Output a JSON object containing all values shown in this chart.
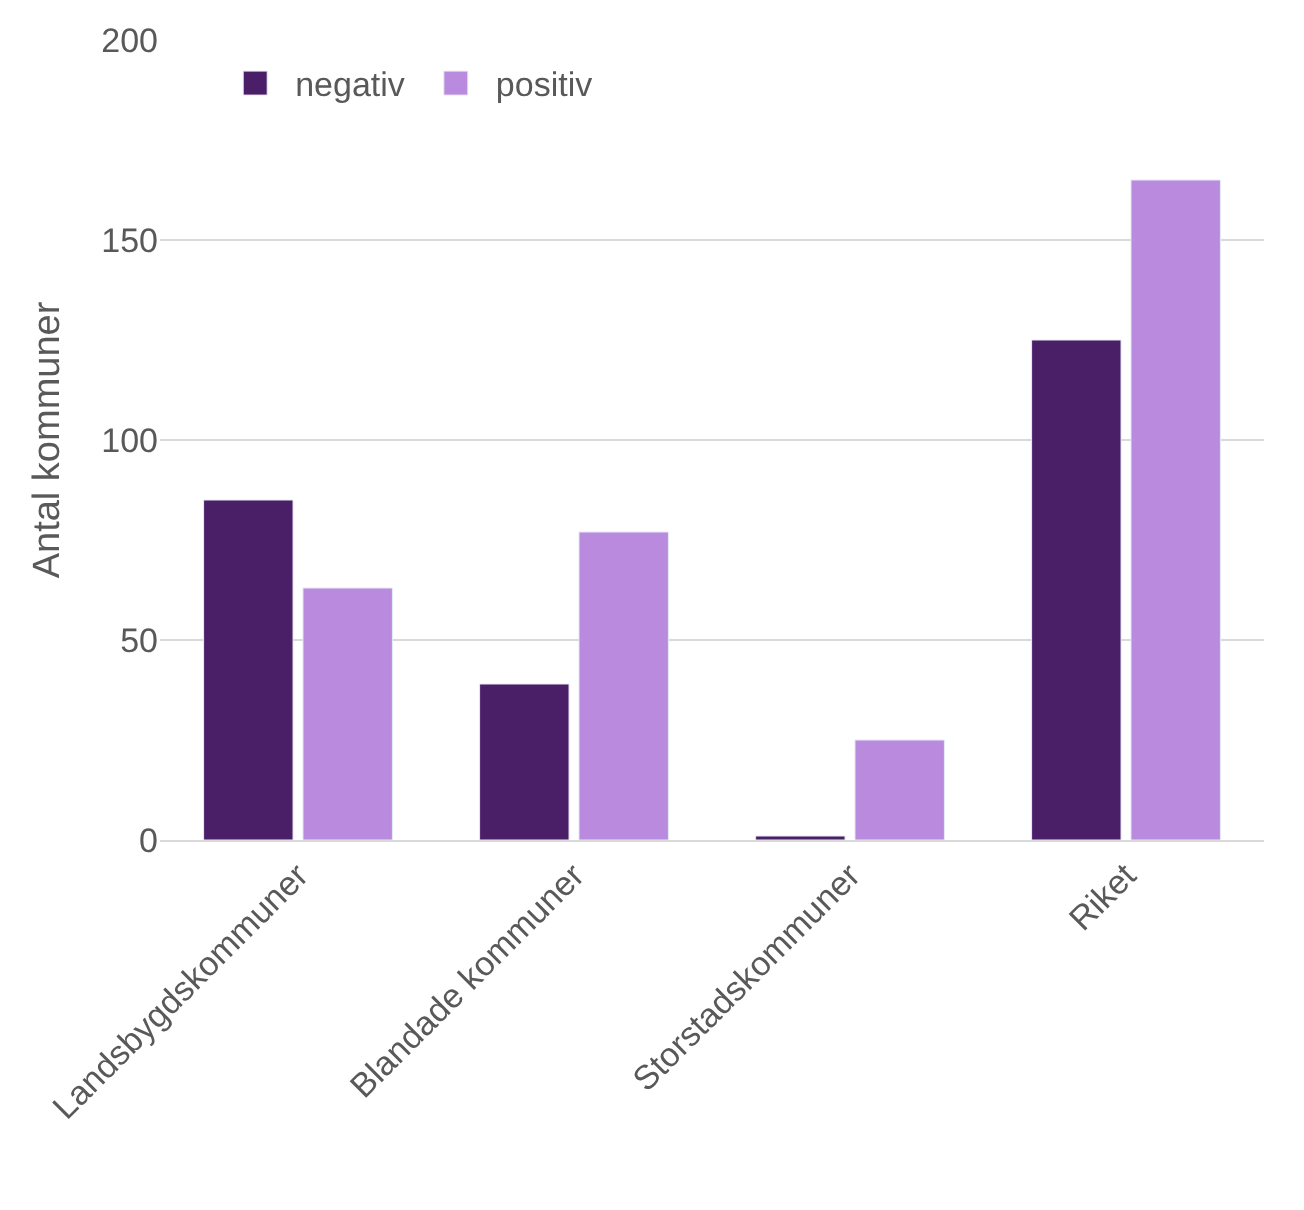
{
  "chart_data": {
    "type": "bar",
    "ylabel": "Antal kommuner",
    "categories": [
      "Landsbygdskommuner",
      "Blandade kommuner",
      "Storstadskommuner",
      "Riket"
    ],
    "series": [
      {
        "name": "negativ",
        "color": "#4b1f67",
        "values": [
          85,
          39,
          1,
          125
        ]
      },
      {
        "name": "positiv",
        "color": "#b98ade",
        "values": [
          63,
          77,
          25,
          165
        ]
      }
    ],
    "ylim": [
      0,
      200
    ],
    "yticks": [
      0,
      50,
      100,
      150,
      200
    ],
    "grid": "y",
    "legend": "top left"
  }
}
